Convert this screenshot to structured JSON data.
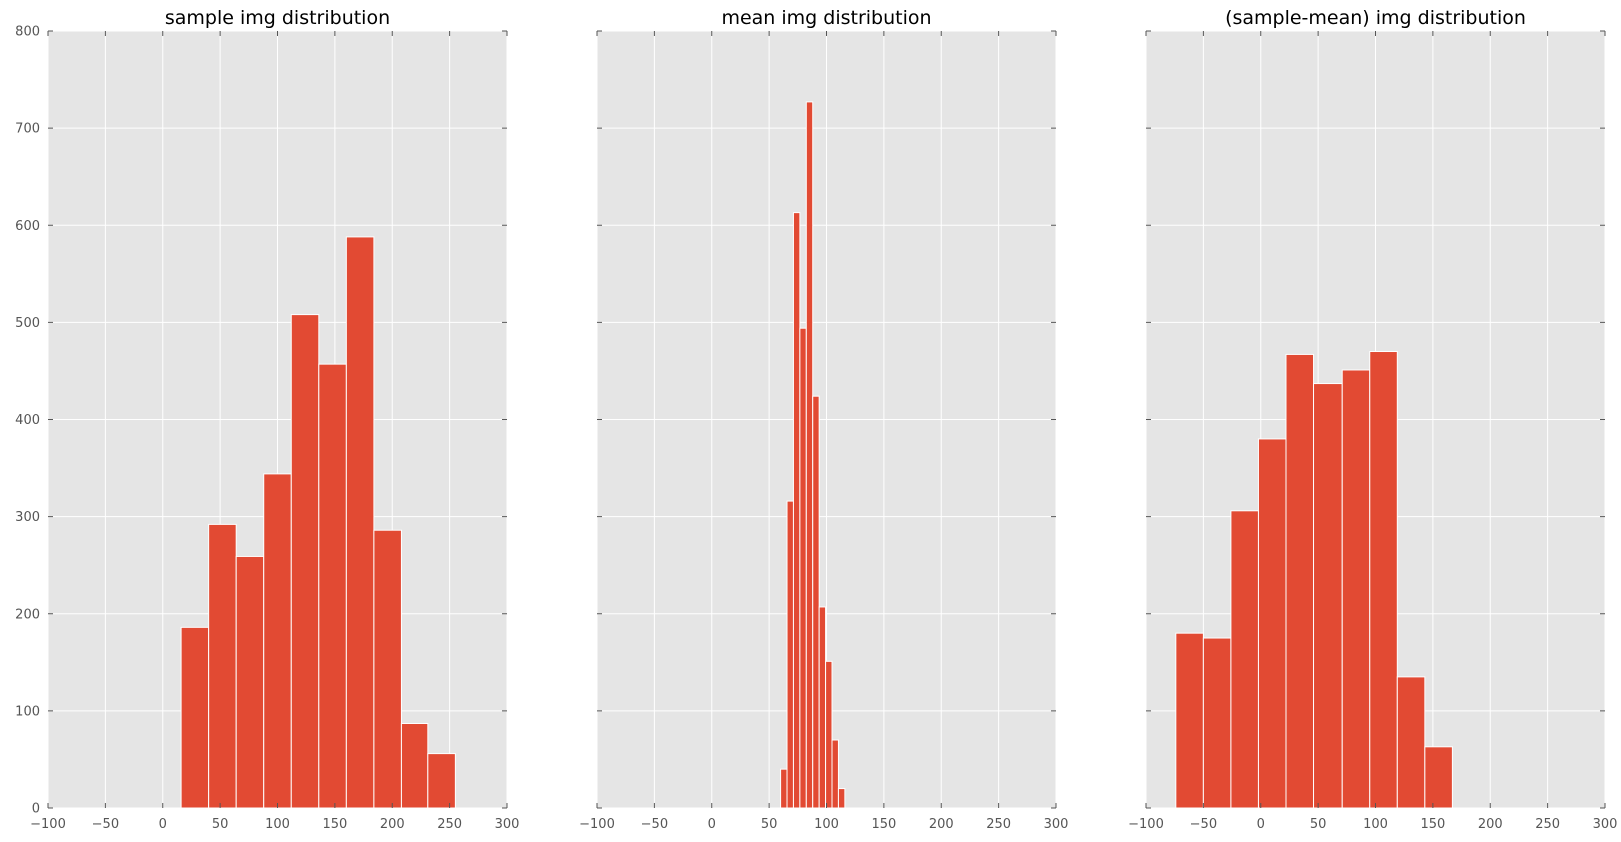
{
  "chart_data": [
    {
      "type": "bar",
      "title": "sample img distribution",
      "xlim": [
        -100,
        300
      ],
      "ylim": [
        0,
        800
      ],
      "xticks": [
        -100,
        -50,
        0,
        50,
        100,
        150,
        200,
        250,
        300
      ],
      "yticks": [
        0,
        100,
        200,
        300,
        400,
        500,
        600,
        700,
        800
      ],
      "show_yticklabels": true,
      "bins": [
        {
          "x0": 16,
          "x1": 40,
          "y": 186
        },
        {
          "x0": 40,
          "x1": 64,
          "y": 292
        },
        {
          "x0": 64,
          "x1": 88,
          "y": 259
        },
        {
          "x0": 88,
          "x1": 112,
          "y": 344
        },
        {
          "x0": 112,
          "x1": 136,
          "y": 508
        },
        {
          "x0": 136,
          "x1": 160,
          "y": 457
        },
        {
          "x0": 160,
          "x1": 184,
          "y": 588
        },
        {
          "x0": 184,
          "x1": 208,
          "y": 286
        },
        {
          "x0": 208,
          "x1": 231,
          "y": 87
        },
        {
          "x0": 231,
          "x1": 255,
          "y": 56
        }
      ],
      "grid": true
    },
    {
      "type": "bar",
      "title": "mean img distribution",
      "xlim": [
        -100,
        300
      ],
      "ylim": [
        0,
        800
      ],
      "xticks": [
        -100,
        -50,
        0,
        50,
        100,
        150,
        200,
        250,
        300
      ],
      "yticks": [
        0,
        100,
        200,
        300,
        400,
        500,
        600,
        700,
        800
      ],
      "show_yticklabels": false,
      "bins": [
        {
          "x0": 60,
          "x1": 65.6,
          "y": 40
        },
        {
          "x0": 65.6,
          "x1": 71.2,
          "y": 316
        },
        {
          "x0": 71.2,
          "x1": 76.8,
          "y": 613
        },
        {
          "x0": 76.8,
          "x1": 82.4,
          "y": 494
        },
        {
          "x0": 82.4,
          "x1": 88.0,
          "y": 727
        },
        {
          "x0": 88.0,
          "x1": 93.6,
          "y": 424
        },
        {
          "x0": 93.6,
          "x1": 99.2,
          "y": 207
        },
        {
          "x0": 99.2,
          "x1": 104.8,
          "y": 151
        },
        {
          "x0": 104.8,
          "x1": 110.4,
          "y": 70
        },
        {
          "x0": 110.4,
          "x1": 116,
          "y": 20
        }
      ],
      "grid": true
    },
    {
      "type": "bar",
      "title": "(sample-mean) img distribution",
      "xlim": [
        -100,
        300
      ],
      "ylim": [
        0,
        800
      ],
      "xticks": [
        -100,
        -50,
        0,
        50,
        100,
        150,
        200,
        250,
        300
      ],
      "yticks": [
        0,
        100,
        200,
        300,
        400,
        500,
        600,
        700,
        800
      ],
      "show_yticklabels": false,
      "bins": [
        {
          "x0": -74,
          "x1": -50,
          "y": 180
        },
        {
          "x0": -50,
          "x1": -26,
          "y": 175
        },
        {
          "x0": -26,
          "x1": -2,
          "y": 306
        },
        {
          "x0": -2,
          "x1": 22,
          "y": 380
        },
        {
          "x0": 22,
          "x1": 46,
          "y": 467
        },
        {
          "x0": 46,
          "x1": 71,
          "y": 437
        },
        {
          "x0": 71,
          "x1": 95,
          "y": 451
        },
        {
          "x0": 95,
          "x1": 119,
          "y": 470
        },
        {
          "x0": 119,
          "x1": 143,
          "y": 135
        },
        {
          "x0": 143,
          "x1": 167,
          "y": 63
        }
      ],
      "grid": true
    }
  ],
  "colors": {
    "background": "#e5e5e5",
    "bar": "#e24a33",
    "bar_edge": "#ffffff",
    "grid": "#ffffff",
    "text": "#000000",
    "tick_label": "#555555",
    "tick": "#555555"
  }
}
